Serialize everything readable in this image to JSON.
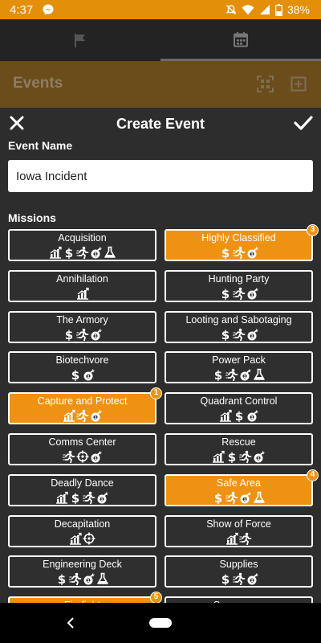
{
  "status": {
    "time": "4:37",
    "battery": "38%"
  },
  "background_app": {
    "title": "Events",
    "tabs": [
      "flag-icon",
      "calendar-icon"
    ]
  },
  "modal": {
    "title": "Create Event",
    "event_name_label": "Event Name",
    "event_name_value": "Iowa Incident",
    "missions_label": "Missions"
  },
  "missions": [
    {
      "name": "Acquisition",
      "selected": false,
      "badge": "",
      "icons": [
        "chart-icon",
        "dollar-icon",
        "runner-icon",
        "bomb-icon",
        "flask-icon"
      ]
    },
    {
      "name": "Highly Classified",
      "selected": true,
      "badge": "3",
      "icons": [
        "dollar-icon",
        "runner-icon",
        "bomb-icon"
      ]
    },
    {
      "name": "Annihilation",
      "selected": false,
      "badge": "",
      "icons": [
        "chart-icon"
      ]
    },
    {
      "name": "Hunting Party",
      "selected": false,
      "badge": "",
      "icons": [
        "dollar-icon",
        "runner-icon",
        "bomb-icon"
      ]
    },
    {
      "name": "The Armory",
      "selected": false,
      "badge": "",
      "icons": [
        "dollar-icon",
        "runner-icon",
        "bomb-icon"
      ]
    },
    {
      "name": "Looting and Sabotaging",
      "selected": false,
      "badge": "",
      "icons": [
        "dollar-icon",
        "runner-icon",
        "bomb-icon"
      ]
    },
    {
      "name": "Biotechvore",
      "selected": false,
      "badge": "",
      "icons": [
        "dollar-icon",
        "bomb-icon"
      ]
    },
    {
      "name": "Power Pack",
      "selected": false,
      "badge": "",
      "icons": [
        "dollar-icon",
        "runner-icon",
        "bomb-icon",
        "flask-icon"
      ]
    },
    {
      "name": "Capture and Protect",
      "selected": true,
      "badge": "1",
      "icons": [
        "chart-icon",
        "runner-icon",
        "bomb-icon"
      ]
    },
    {
      "name": "Quadrant Control",
      "selected": false,
      "badge": "",
      "icons": [
        "chart-icon",
        "dollar-icon",
        "bomb-icon"
      ]
    },
    {
      "name": "Comms Center",
      "selected": false,
      "badge": "",
      "icons": [
        "runner-icon",
        "target-icon",
        "bomb-icon"
      ]
    },
    {
      "name": "Rescue",
      "selected": false,
      "badge": "",
      "icons": [
        "chart-icon",
        "dollar-icon",
        "runner-icon",
        "bomb-icon"
      ]
    },
    {
      "name": "Deadly Dance",
      "selected": false,
      "badge": "",
      "icons": [
        "chart-icon",
        "dollar-icon",
        "runner-icon",
        "bomb-icon"
      ]
    },
    {
      "name": "Safe Area",
      "selected": true,
      "badge": "4",
      "icons": [
        "dollar-icon",
        "runner-icon",
        "bomb-icon",
        "flask-icon"
      ]
    },
    {
      "name": "Decapitation",
      "selected": false,
      "badge": "",
      "icons": [
        "chart-icon",
        "target-icon"
      ]
    },
    {
      "name": "Show of Force",
      "selected": false,
      "badge": "",
      "icons": [
        "chart-icon",
        "runner-icon"
      ]
    },
    {
      "name": "Engineering Deck",
      "selected": false,
      "badge": "",
      "icons": [
        "dollar-icon",
        "runner-icon",
        "bomb-icon",
        "flask-icon"
      ]
    },
    {
      "name": "Supplies",
      "selected": false,
      "badge": "",
      "icons": [
        "dollar-icon",
        "runner-icon",
        "bomb-icon"
      ]
    },
    {
      "name": "Firefight",
      "selected": true,
      "badge": "5",
      "icons": []
    },
    {
      "name": "Supremacy",
      "selected": false,
      "badge": "",
      "icons": []
    }
  ],
  "colors": {
    "accent": "#ef9213",
    "status_bar": "#e48f0a",
    "background": "#2d2d2d"
  }
}
